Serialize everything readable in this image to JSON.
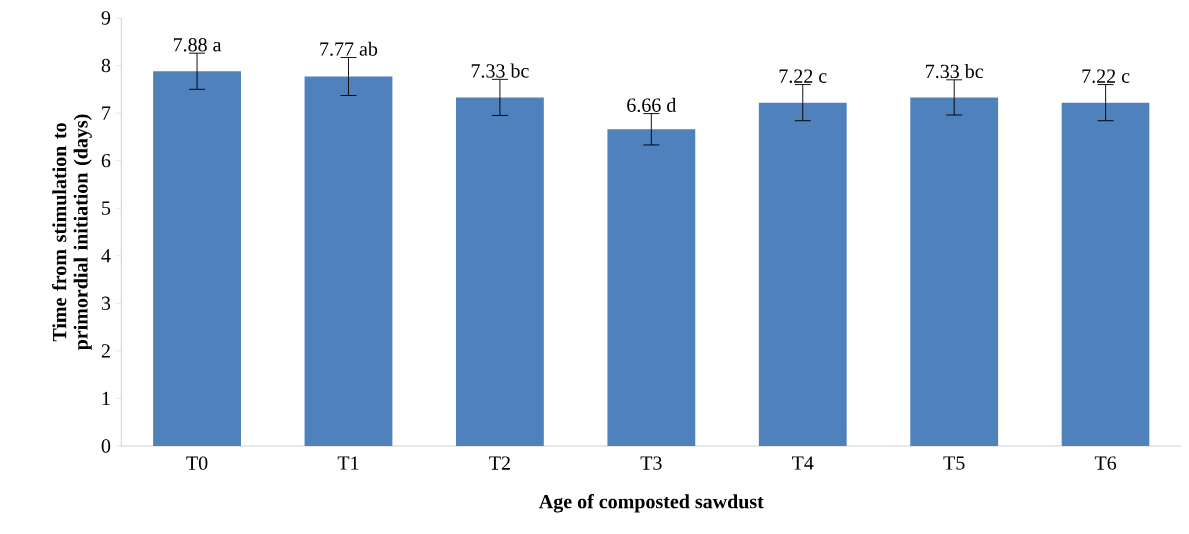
{
  "chart_data": {
    "type": "bar",
    "xlabel": "Age of composted sawdust",
    "ylabel": "Time from stimulation to primordial initiation (days)",
    "categories": [
      "T0",
      "T1",
      "T2",
      "T3",
      "T4",
      "T5",
      "T6"
    ],
    "values": [
      7.88,
      7.77,
      7.33,
      6.66,
      7.22,
      7.33,
      7.22
    ],
    "errors": [
      0.38,
      0.4,
      0.38,
      0.33,
      0.38,
      0.37,
      0.38
    ],
    "value_labels": [
      "7.88 a",
      "7.77 ab",
      "7.33 bc",
      "6.66 d",
      "7.22 c",
      "7.33 bc",
      "7.22 c"
    ],
    "color": "#4f81bd",
    "ylim": [
      0,
      9
    ],
    "yticks": [
      0,
      1,
      2,
      3,
      4,
      5,
      6,
      7,
      8,
      9
    ],
    "grid": false
  }
}
